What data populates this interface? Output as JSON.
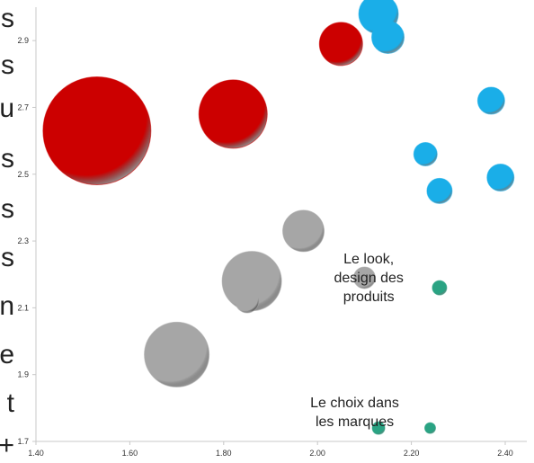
{
  "left_text_fragments": [
    "s",
    "s",
    "u",
    "s",
    "s",
    "s",
    "n",
    "e",
    "t",
    "+"
  ],
  "colors": {
    "red": "#cc0000",
    "blue": "#1aaee8",
    "gray": "#a6a6a6",
    "teal": "#2aa383",
    "axis": "#c8c8c8"
  },
  "chart_data": {
    "type": "bubble",
    "title": "",
    "xlabel": "",
    "ylabel": "",
    "xlim": [
      1.4,
      2.4
    ],
    "ylim": [
      1.7,
      3.0
    ],
    "x_ticks": [
      "1.40",
      "1.60",
      "1.80",
      "2.00",
      "2.20",
      "2.40"
    ],
    "y_ticks": [
      "1.7",
      "1.9",
      "2.1",
      "2.3",
      "2.5",
      "2.7",
      "2.9"
    ],
    "grid": false,
    "series": [
      {
        "color_key": "red",
        "points": [
          {
            "x": 1.53,
            "y": 2.63,
            "size": 60
          },
          {
            "x": 1.82,
            "y": 2.68,
            "size": 38
          },
          {
            "x": 2.05,
            "y": 2.89,
            "size": 24
          }
        ]
      },
      {
        "color_key": "blue",
        "points": [
          {
            "x": 2.13,
            "y": 2.98,
            "size": 22
          },
          {
            "x": 2.15,
            "y": 2.91,
            "size": 18
          },
          {
            "x": 2.37,
            "y": 2.72,
            "size": 15
          },
          {
            "x": 2.23,
            "y": 2.56,
            "size": 13
          },
          {
            "x": 2.39,
            "y": 2.49,
            "size": 15
          },
          {
            "x": 2.26,
            "y": 2.45,
            "size": 14
          }
        ]
      },
      {
        "color_key": "gray",
        "points": [
          {
            "x": 1.97,
            "y": 2.33,
            "size": 23
          },
          {
            "x": 1.86,
            "y": 2.18,
            "size": 33
          },
          {
            "x": 1.85,
            "y": 2.12,
            "size": 13
          },
          {
            "x": 2.1,
            "y": 2.19,
            "size": 12
          },
          {
            "x": 1.7,
            "y": 1.96,
            "size": 36
          }
        ]
      },
      {
        "color_key": "teal",
        "points": [
          {
            "x": 2.26,
            "y": 2.16,
            "size": 8
          },
          {
            "x": 2.13,
            "y": 1.74,
            "size": 7
          },
          {
            "x": 2.24,
            "y": 1.74,
            "size": 6
          }
        ]
      }
    ],
    "annotations": [
      {
        "lines": [
          "Le look,",
          "design des",
          "produits"
        ],
        "x": 2.09,
        "y": 2.2
      },
      {
        "lines": [
          "Le choix dans",
          "les marques"
        ],
        "x": 2.06,
        "y": 1.77
      }
    ]
  }
}
